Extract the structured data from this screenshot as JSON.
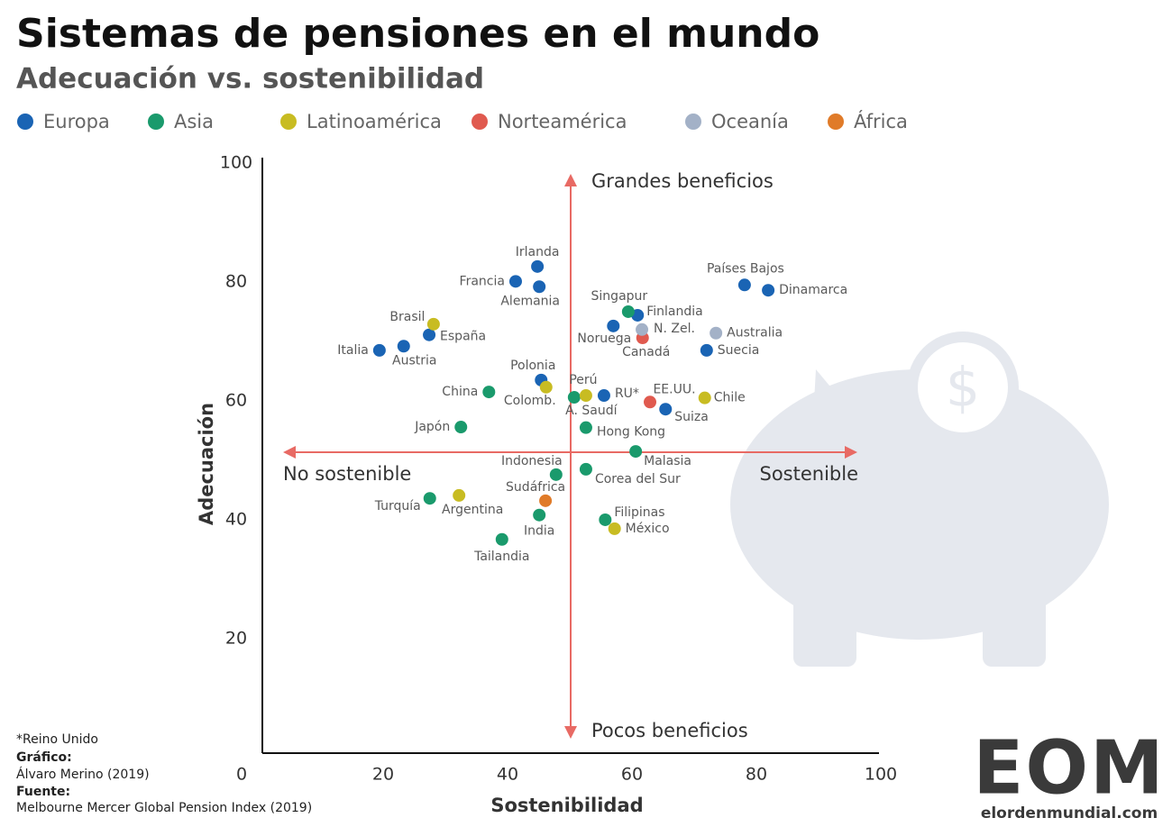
{
  "chart_data": {
    "type": "scatter",
    "title": "Sistemas de pensiones en el mundo",
    "subtitle": "Adecuación vs. sostenibilidad",
    "x_label": "Sostenibilidad",
    "y_label": "Adecuación",
    "xlim": [
      0,
      100
    ],
    "ylim": [
      0,
      100
    ],
    "xticks": [
      0,
      20,
      40,
      60,
      80,
      100
    ],
    "yticks": [
      20,
      40,
      60,
      80,
      100
    ],
    "annotations": [
      "Grandes beneficios",
      "Pocos beneficios",
      "No sostenible",
      "Sostenible"
    ],
    "series": [
      {
        "name": "Europa",
        "color": "#1a64b4",
        "labels": [
          "Irlanda",
          "Francia",
          "Alemania",
          "España",
          "Italia",
          "Austria",
          "Polonia",
          "RU*",
          "Noruega",
          "Finlandia",
          "Países Bajos",
          "Dinamarca",
          "Suecia",
          "Suiza"
        ],
        "x": [
          44.8,
          41.3,
          45.1,
          27.4,
          19.4,
          23.3,
          45.4,
          55.5,
          57.0,
          60.9,
          78.1,
          81.9,
          72.0,
          65.4
        ],
        "values": [
          82.3,
          79.8,
          78.9,
          70.8,
          68.2,
          68.9,
          63.2,
          60.6,
          72.3,
          74.1,
          79.2,
          78.3,
          68.2,
          58.3
        ]
      },
      {
        "name": "Asia",
        "color": "#1a9a6c",
        "labels": [
          "Singapur",
          "China",
          "A. Saudí",
          "Japón",
          "Hong Kong",
          "Malasia",
          "Indonesia",
          "Corea del Sur",
          "Turquía",
          "India",
          "Tailandia",
          "Filipinas"
        ],
        "x": [
          59.4,
          37.0,
          50.7,
          32.5,
          52.6,
          60.6,
          47.8,
          52.6,
          27.5,
          45.1,
          39.1,
          55.7
        ],
        "values": [
          74.7,
          61.2,
          60.3,
          55.3,
          55.2,
          51.2,
          47.3,
          48.2,
          43.3,
          40.5,
          36.4,
          39.7
        ]
      },
      {
        "name": "Latinoamérica",
        "color": "#c8bc22",
        "labels": [
          "Brasil",
          "Colomb.",
          "Perú",
          "Chile",
          "Argentina",
          "México"
        ],
        "x": [
          28.1,
          46.2,
          52.6,
          71.7,
          32.2,
          57.2
        ],
        "values": [
          72.6,
          62.0,
          60.6,
          60.2,
          43.8,
          38.2
        ]
      },
      {
        "name": "Norteamérica",
        "color": "#e05a4f",
        "labels": [
          "Canadá",
          "EE.UU."
        ],
        "x": [
          61.7,
          62.9
        ],
        "values": [
          70.3,
          59.5
        ]
      },
      {
        "name": "Oceanía",
        "color": "#a3b1c7",
        "labels": [
          "N. Zel.",
          "Australia"
        ],
        "x": [
          61.6,
          73.5
        ],
        "values": [
          71.7,
          71.1
        ]
      },
      {
        "name": "África",
        "color": "#e07b29",
        "labels": [
          "Sudáfrica"
        ],
        "x": [
          46.1
        ],
        "values": [
          42.9
        ]
      }
    ]
  },
  "footer": {
    "note": "*Reino Unido",
    "graphic_heading": "Gráfico:",
    "graphic": "Álvaro Merino (2019)",
    "source_heading": "Fuente:",
    "source": "Melbourne Mercer Global Pension Index (2019)"
  },
  "logo": {
    "mark": "EOM",
    "site": "elordenmundial.com"
  }
}
